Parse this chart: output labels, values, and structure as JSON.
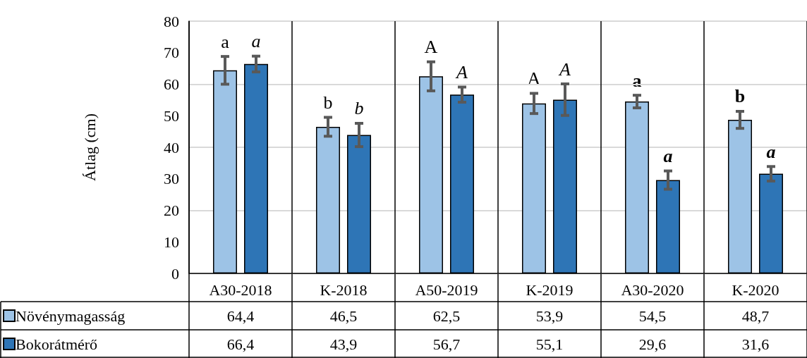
{
  "chart_data": {
    "type": "bar",
    "ylabel": "Átlag (cm)",
    "categories": [
      "A30-2018",
      "K-2018",
      "A50-2019",
      "K-2019",
      "A30-2020",
      "K-2020"
    ],
    "series": [
      {
        "name": "Növénymagasság",
        "color": "#9dc3e6",
        "values": [
          64.4,
          46.5,
          62.5,
          53.9,
          54.5,
          48.7
        ],
        "value_labels": [
          "64,4",
          "46,5",
          "62,5",
          "53,9",
          "54,5",
          "48,7"
        ],
        "errors": [
          4.4,
          3,
          4.6,
          3.2,
          2,
          2.7
        ]
      },
      {
        "name": "Bokorátmérő",
        "color": "#2e75b6",
        "values": [
          66.4,
          43.9,
          56.7,
          55.1,
          29.6,
          31.6
        ],
        "value_labels": [
          "66,4",
          "43,9",
          "56,7",
          "55,1",
          "29,6",
          "31,6"
        ],
        "errors": [
          2.5,
          3.7,
          2.4,
          5,
          2.9,
          2.3
        ]
      }
    ],
    "ylim": [
      0,
      80
    ],
    "yticks": [
      0,
      10,
      20,
      30,
      40,
      50,
      60,
      70,
      80
    ],
    "grid": "y",
    "legend": "bottom left",
    "annotations": [
      "a",
      "a",
      "b",
      "b",
      "A",
      "A",
      "A",
      "A",
      "a",
      "a",
      "b",
      "a"
    ]
  }
}
